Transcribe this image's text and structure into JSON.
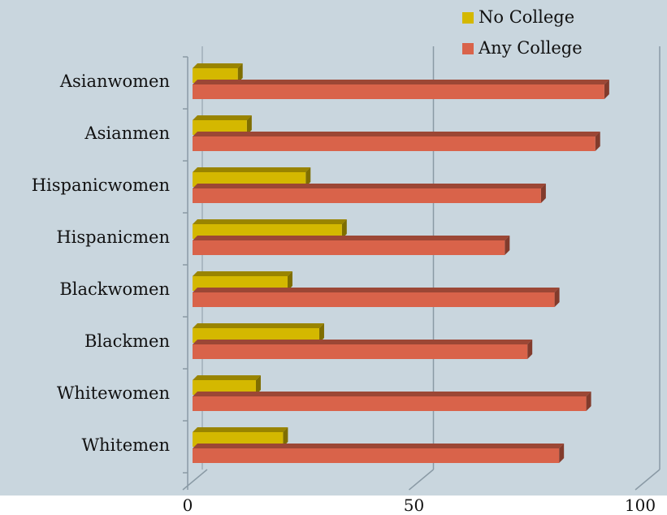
{
  "chart_data": {
    "type": "bar",
    "orientation": "horizontal",
    "title": "",
    "xlabel": "",
    "ylabel": "",
    "categories": [
      "Asianwomen",
      "Asianmen",
      "Hispanicwomen",
      "Hispanicmen",
      "Blackwomen",
      "Blackmen",
      "Whitewomen",
      "Whitemen"
    ],
    "series": [
      {
        "name": "No College",
        "color": "#d4b800",
        "values": [
          10,
          12,
          25,
          33,
          21,
          28,
          14,
          20
        ]
      },
      {
        "name": "Any College",
        "color": "#d9634a",
        "values": [
          91,
          89,
          77,
          69,
          80,
          74,
          87,
          81
        ]
      }
    ],
    "xlim": [
      0,
      100
    ],
    "xticks": [
      0,
      50,
      100
    ],
    "grid": true,
    "legend_position": "top-right"
  }
}
